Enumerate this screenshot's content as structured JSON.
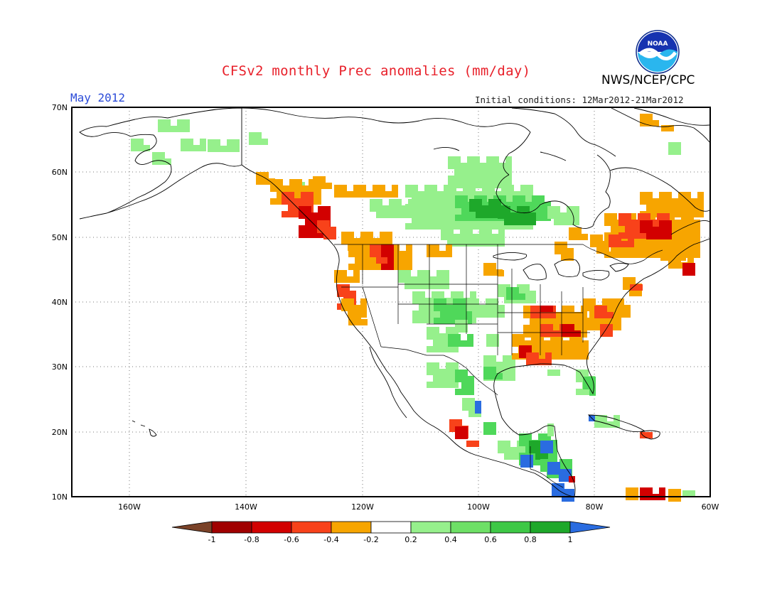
{
  "header": {
    "title": "CFSv2 monthly Prec anomalies (mm/day)",
    "agency": "NWS/NCEP/CPC",
    "month_label": "May 2012",
    "initial_conditions": "Initial conditions: 12Mar2012-21Mar2012",
    "logo_text": "NOAA"
  },
  "map": {
    "lat_range": [
      10,
      70
    ],
    "lon_range": [
      -170,
      -60
    ],
    "lat_ticks": [
      "70N",
      "60N",
      "50N",
      "40N",
      "30N",
      "20N",
      "10N"
    ],
    "lon_ticks": [
      "160W",
      "140W",
      "120W",
      "100W",
      "80W",
      "60W"
    ],
    "colors": {
      "dry_strong": "#d20000",
      "dry_medium": "#f8421a",
      "dry_light": "#f7a500",
      "wet_light": "#96f08c",
      "wet_medium": "#4fd85a",
      "wet_strong": "#1ea82a",
      "wet_extreme": "#2a6ce0"
    }
  },
  "colorbar": {
    "labels": [
      "-1",
      "-0.8",
      "-0.6",
      "-0.4",
      "-0.2",
      "0.2",
      "0.4",
      "0.6",
      "0.8",
      "1"
    ],
    "colors": [
      "#7a4228",
      "#a00000",
      "#d20000",
      "#f8421a",
      "#f7a500",
      "#ffffff",
      "#96f08c",
      "#6ee066",
      "#3ec846",
      "#1ea82a",
      "#2a6ce0"
    ]
  }
}
